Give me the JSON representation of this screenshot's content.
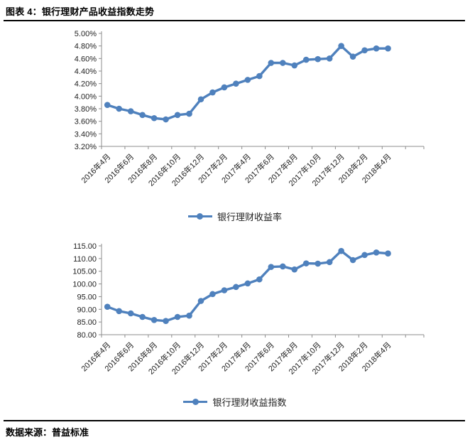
{
  "page": {
    "title": "图表 4：银行理财产品收益指数走势",
    "source_label": "数据来源：普益标准"
  },
  "colors": {
    "series_blue": "#4F81BD",
    "axis_gray": "#8C8C8C",
    "text_color": "#1f1f1f",
    "rule_black": "#000000"
  },
  "chart_data": [
    {
      "type": "line",
      "legend": "银行理财收益率",
      "legend_position": "bottom",
      "unit": "percent",
      "grid": false,
      "ylim": [
        3.2,
        5.0
      ],
      "ytick_step": 0.2,
      "x": [
        "2016年4月",
        "2016年5月",
        "2016年6月",
        "2016年7月",
        "2016年8月",
        "2016年9月",
        "2016年10月",
        "2016年11月",
        "2016年12月",
        "2017年1月",
        "2017年2月",
        "2017年3月",
        "2017年4月",
        "2017年5月",
        "2017年6月",
        "2017年7月",
        "2017年8月",
        "2017年9月",
        "2017年10月",
        "2017年11月",
        "2017年12月",
        "2018年1月",
        "2018年2月",
        "2018年3月",
        "2018年4月"
      ],
      "tick_labels": [
        "2016年4月",
        "2016年6月",
        "2016年8月",
        "2016年10月",
        "2016年12月",
        "2017年2月",
        "2017年4月",
        "2017年6月",
        "2017年8月",
        "2017年10月",
        "2017年12月",
        "2018年2月",
        "2018年4月"
      ],
      "values": [
        3.86,
        3.8,
        3.76,
        3.7,
        3.65,
        3.63,
        3.7,
        3.72,
        3.95,
        4.06,
        4.14,
        4.2,
        4.26,
        4.32,
        4.53,
        4.53,
        4.49,
        4.58,
        4.59,
        4.6,
        4.8,
        4.63,
        4.73,
        4.76,
        4.76
      ]
    },
    {
      "type": "line",
      "legend": "银行理财收益指数",
      "legend_position": "bottom",
      "unit": "number",
      "grid": false,
      "ylim": [
        80,
        115
      ],
      "ytick_step": 5,
      "x": [
        "2016年4月",
        "2016年5月",
        "2016年6月",
        "2016年7月",
        "2016年8月",
        "2016年9月",
        "2016年10月",
        "2016年11月",
        "2016年12月",
        "2017年1月",
        "2017年2月",
        "2017年3月",
        "2017年4月",
        "2017年5月",
        "2017年6月",
        "2017年7月",
        "2017年8月",
        "2017年9月",
        "2017年10月",
        "2017年11月",
        "2017年12月",
        "2018年1月",
        "2018年2月",
        "2018年3月",
        "2018年4月"
      ],
      "tick_labels": [
        "2016年4月",
        "2016年6月",
        "2016年8月",
        "2016年10月",
        "2016年12月",
        "2017年2月",
        "2017年4月",
        "2017年6月",
        "2017年8月",
        "2017年10月",
        "2017年12月",
        "2018年2月",
        "2018年4月"
      ],
      "values": [
        91.0,
        89.3,
        88.4,
        87.0,
        85.8,
        85.4,
        87.0,
        87.5,
        93.3,
        96.0,
        97.5,
        98.8,
        100.2,
        101.8,
        106.7,
        106.9,
        105.7,
        108.1,
        108.0,
        108.6,
        113.0,
        109.4,
        111.4,
        112.4,
        112.0
      ]
    }
  ]
}
